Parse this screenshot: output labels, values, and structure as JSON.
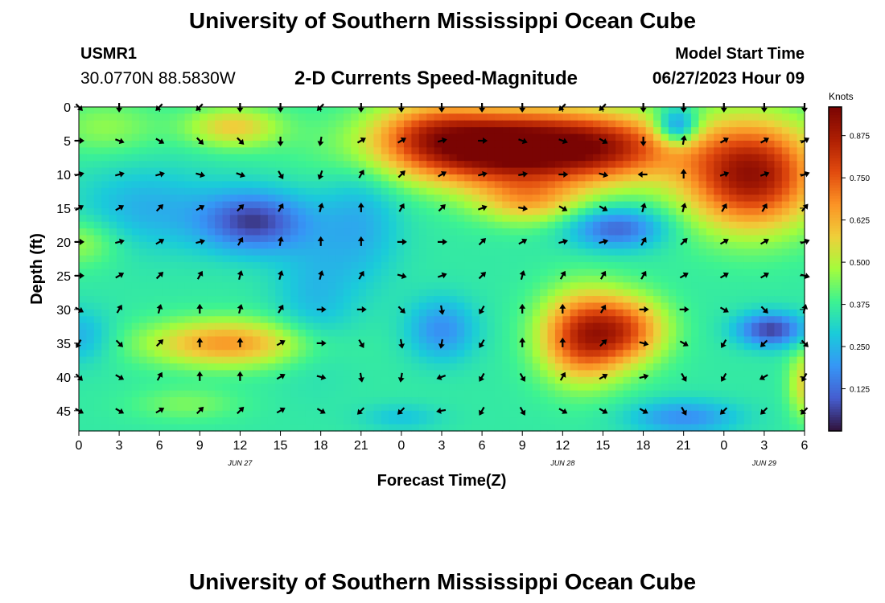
{
  "page": {
    "title_top": "University of Southern Mississippi Ocean Cube",
    "title_bottom": "University of Southern Mississippi Ocean Cube"
  },
  "station": {
    "id": "USMR1",
    "coords": "30.0770N  88.5830W"
  },
  "model": {
    "label": "Model Start Time",
    "value": "06/27/2023 Hour 09"
  },
  "chart_data": {
    "type": "heatmap",
    "title": "2-D Currents Speed-Magnitude",
    "xlabel": "Forecast Time(Z)",
    "ylabel": "Depth (ft)",
    "ylim": [
      0,
      48
    ],
    "xlim": [
      0,
      54
    ],
    "x_tick_labels": [
      "0",
      "3",
      "6",
      "9",
      "12",
      "15",
      "18",
      "21",
      "0",
      "3",
      "6",
      "9",
      "12",
      "15",
      "18",
      "21",
      "0",
      "3",
      "6"
    ],
    "y_ticks": [
      0,
      5,
      10,
      15,
      20,
      25,
      30,
      35,
      40,
      45
    ],
    "date_labels": [
      {
        "text": "JUN 27",
        "x": 12
      },
      {
        "text": "JUN 28",
        "x": 36
      },
      {
        "text": "JUN 29",
        "x": 51
      }
    ],
    "colorbar": {
      "units": "Knots",
      "min": 0.0,
      "max": 0.96,
      "ticks": [
        "0.125",
        "0.250",
        "0.375",
        "0.500",
        "0.625",
        "0.750",
        "0.875"
      ],
      "tick_values": [
        0.125,
        0.25,
        0.375,
        0.5,
        0.625,
        0.75,
        0.875
      ]
    },
    "speed_blobs": [
      {
        "x": 13,
        "y": 17,
        "sx": 4,
        "sy": 4.5,
        "a": -0.3
      },
      {
        "x": 5,
        "y": 15,
        "sx": 5,
        "sy": 6,
        "a": -0.12
      },
      {
        "x": 0,
        "y": 34,
        "sx": 2.5,
        "sy": 4,
        "a": -0.12
      },
      {
        "x": 11.5,
        "y": 3,
        "sx": 3.5,
        "sy": 3,
        "a": 0.22
      },
      {
        "x": 2,
        "y": 3,
        "sx": 4,
        "sy": 4,
        "a": 0.1
      },
      {
        "x": 0,
        "y": 20,
        "sx": 3,
        "sy": 3.5,
        "a": 0.12
      },
      {
        "x": 11,
        "y": 35,
        "sx": 6,
        "sy": 3.5,
        "a": 0.3
      },
      {
        "x": 8,
        "y": 44,
        "sx": 4,
        "sy": 2.5,
        "a": 0.08
      },
      {
        "x": 32,
        "y": 6,
        "sx": 9,
        "sy": 5.5,
        "a": 0.7
      },
      {
        "x": 26,
        "y": 3,
        "sx": 4,
        "sy": 4.5,
        "a": 0.15
      },
      {
        "x": 33.5,
        "y": 14,
        "sx": 4,
        "sy": 3.5,
        "a": 0.22
      },
      {
        "x": 40,
        "y": 6,
        "sx": 5,
        "sy": 5,
        "a": 0.2
      },
      {
        "x": 21,
        "y": 17,
        "sx": 3,
        "sy": 9,
        "a": -0.12
      },
      {
        "x": 27,
        "y": 33,
        "sx": 2.5,
        "sy": 4.5,
        "a": -0.18
      },
      {
        "x": 40,
        "y": 18,
        "sx": 3.5,
        "sy": 3,
        "a": -0.25
      },
      {
        "x": 44.5,
        "y": 3,
        "sx": 1.6,
        "sy": 2.8,
        "a": -0.32
      },
      {
        "x": 50,
        "y": 10,
        "sx": 5,
        "sy": 8,
        "a": 0.55
      },
      {
        "x": 37.5,
        "y": 34,
        "sx": 3.2,
        "sy": 6.5,
        "a": 0.45
      },
      {
        "x": 41,
        "y": 33,
        "sx": 3,
        "sy": 5,
        "a": 0.3
      },
      {
        "x": 51.5,
        "y": 33,
        "sx": 2.5,
        "sy": 2.5,
        "a": -0.3
      },
      {
        "x": 45,
        "y": 46,
        "sx": 4,
        "sy": 2.5,
        "a": -0.18
      },
      {
        "x": 54,
        "y": 41,
        "sx": 1.2,
        "sy": 5,
        "a": 0.2
      },
      {
        "x": 17.5,
        "y": 28,
        "sx": 3,
        "sy": 10,
        "a": -0.1
      },
      {
        "x": 24,
        "y": 46,
        "sx": 3,
        "sy": 2,
        "a": -0.08
      }
    ],
    "vector_grid": {
      "x_positions": [
        0,
        3,
        6,
        9,
        12,
        15,
        18,
        21,
        24,
        27,
        30,
        33,
        36,
        39,
        42,
        45,
        48,
        51,
        54
      ],
      "depths": [
        0,
        5,
        10,
        15,
        20,
        25,
        30,
        35,
        40,
        45
      ],
      "arrow_angles": [
        [
          -45,
          -90,
          -135,
          -135,
          -90,
          -90,
          -135,
          -90,
          -90,
          -90,
          -90,
          -90,
          -135,
          -135,
          -90,
          -90,
          -90,
          -90,
          -90
        ],
        [
          0,
          -20,
          -30,
          -45,
          -45,
          -90,
          -100,
          30,
          30,
          15,
          0,
          -20,
          -20,
          -30,
          -90,
          80,
          30,
          30,
          30
        ],
        [
          15,
          15,
          15,
          -15,
          -20,
          -60,
          -110,
          60,
          45,
          30,
          15,
          10,
          0,
          -15,
          -180,
          90,
          20,
          20,
          20
        ],
        [
          30,
          30,
          45,
          30,
          45,
          60,
          75,
          90,
          60,
          45,
          20,
          -10,
          -30,
          -30,
          75,
          75,
          60,
          60,
          50
        ],
        [
          0,
          15,
          30,
          15,
          60,
          80,
          90,
          90,
          0,
          0,
          45,
          30,
          15,
          15,
          60,
          45,
          30,
          30,
          20
        ],
        [
          0,
          30,
          45,
          60,
          75,
          75,
          75,
          60,
          -15,
          20,
          45,
          75,
          60,
          60,
          60,
          30,
          30,
          30,
          -15
        ],
        [
          -30,
          60,
          75,
          90,
          75,
          60,
          0,
          0,
          -45,
          -80,
          -120,
          90,
          90,
          60,
          0,
          0,
          -30,
          -45,
          75
        ],
        [
          -120,
          -45,
          45,
          90,
          90,
          30,
          0,
          -60,
          -80,
          -100,
          -120,
          90,
          90,
          45,
          -15,
          -30,
          -120,
          -135,
          -45
        ],
        [
          -45,
          -30,
          60,
          90,
          90,
          30,
          -15,
          -80,
          -100,
          -160,
          -120,
          -60,
          60,
          30,
          15,
          -60,
          -120,
          -150,
          -120
        ],
        [
          -30,
          -30,
          30,
          45,
          45,
          30,
          -30,
          -135,
          -135,
          -170,
          -120,
          -60,
          -30,
          -30,
          -30,
          -60,
          -135,
          -135,
          -135
        ]
      ]
    }
  }
}
